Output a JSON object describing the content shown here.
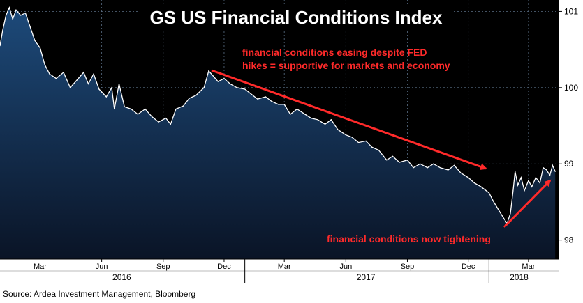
{
  "chart_data": {
    "type": "area",
    "title": "GS US Financial Conditions Index",
    "ylim": [
      97.75,
      101.15
    ],
    "y_ticks": [
      "101",
      "100",
      "99",
      "98"
    ],
    "y_tick_values": [
      101,
      100,
      99,
      98
    ],
    "x_month_labels": [
      {
        "label": "Mar",
        "date": "2016-03-01"
      },
      {
        "label": "Jun",
        "date": "2016-06-01"
      },
      {
        "label": "Sep",
        "date": "2016-09-01"
      },
      {
        "label": "Dec",
        "date": "2016-12-01"
      },
      {
        "label": "Mar",
        "date": "2017-03-01"
      },
      {
        "label": "Jun",
        "date": "2017-06-01"
      },
      {
        "label": "Sep",
        "date": "2017-09-01"
      },
      {
        "label": "Dec",
        "date": "2017-12-01"
      },
      {
        "label": "Mar",
        "date": "2018-03-01"
      }
    ],
    "x_year_labels": [
      {
        "label": "2016",
        "date": "2016-07-01"
      },
      {
        "label": "2017",
        "date": "2017-07-01"
      },
      {
        "label": "2018",
        "date": "2018-02-15"
      }
    ],
    "x_start": "2016-01-01",
    "x_end": "2018-04-15",
    "series": [
      {
        "color": "#ffffff",
        "fill_top": "#1d4a7a",
        "fill_bottom": "#0a1426",
        "points": [
          [
            "2016-01-01",
            100.55
          ],
          [
            "2016-01-05",
            100.75
          ],
          [
            "2016-01-10",
            100.95
          ],
          [
            "2016-01-15",
            101.05
          ],
          [
            "2016-01-20",
            100.9
          ],
          [
            "2016-01-25",
            101.02
          ],
          [
            "2016-02-01",
            100.95
          ],
          [
            "2016-02-08",
            100.98
          ],
          [
            "2016-02-15",
            100.8
          ],
          [
            "2016-02-22",
            100.62
          ],
          [
            "2016-03-01",
            100.52
          ],
          [
            "2016-03-08",
            100.3
          ],
          [
            "2016-03-15",
            100.18
          ],
          [
            "2016-03-25",
            100.12
          ],
          [
            "2016-04-05",
            100.2
          ],
          [
            "2016-04-15",
            100.0
          ],
          [
            "2016-04-25",
            100.1
          ],
          [
            "2016-05-05",
            100.2
          ],
          [
            "2016-05-12",
            100.05
          ],
          [
            "2016-05-20",
            100.18
          ],
          [
            "2016-05-28",
            99.98
          ],
          [
            "2016-06-08",
            99.88
          ],
          [
            "2016-06-16",
            100.0
          ],
          [
            "2016-06-20",
            99.72
          ],
          [
            "2016-06-27",
            100.05
          ],
          [
            "2016-07-05",
            99.75
          ],
          [
            "2016-07-15",
            99.72
          ],
          [
            "2016-07-25",
            99.65
          ],
          [
            "2016-08-05",
            99.72
          ],
          [
            "2016-08-15",
            99.62
          ],
          [
            "2016-08-25",
            99.55
          ],
          [
            "2016-09-05",
            99.6
          ],
          [
            "2016-09-12",
            99.52
          ],
          [
            "2016-09-20",
            99.72
          ],
          [
            "2016-10-01",
            99.76
          ],
          [
            "2016-10-10",
            99.86
          ],
          [
            "2016-10-20",
            99.9
          ],
          [
            "2016-11-01",
            100.0
          ],
          [
            "2016-11-08",
            100.22
          ],
          [
            "2016-11-15",
            100.15
          ],
          [
            "2016-11-22",
            100.08
          ],
          [
            "2016-12-01",
            100.12
          ],
          [
            "2016-12-10",
            100.05
          ],
          [
            "2016-12-20",
            100.0
          ],
          [
            "2017-01-01",
            99.98
          ],
          [
            "2017-01-10",
            99.92
          ],
          [
            "2017-01-20",
            99.85
          ],
          [
            "2017-02-01",
            99.88
          ],
          [
            "2017-02-10",
            99.82
          ],
          [
            "2017-02-20",
            99.78
          ],
          [
            "2017-03-01",
            99.78
          ],
          [
            "2017-03-10",
            99.65
          ],
          [
            "2017-03-20",
            99.72
          ],
          [
            "2017-04-01",
            99.65
          ],
          [
            "2017-04-10",
            99.6
          ],
          [
            "2017-04-20",
            99.58
          ],
          [
            "2017-05-01",
            99.52
          ],
          [
            "2017-05-10",
            99.58
          ],
          [
            "2017-05-20",
            99.45
          ],
          [
            "2017-06-01",
            99.38
          ],
          [
            "2017-06-10",
            99.35
          ],
          [
            "2017-06-20",
            99.28
          ],
          [
            "2017-07-01",
            99.3
          ],
          [
            "2017-07-10",
            99.22
          ],
          [
            "2017-07-20",
            99.18
          ],
          [
            "2017-08-01",
            99.05
          ],
          [
            "2017-08-10",
            99.1
          ],
          [
            "2017-08-20",
            99.02
          ],
          [
            "2017-09-01",
            99.05
          ],
          [
            "2017-09-10",
            98.95
          ],
          [
            "2017-09-20",
            99.0
          ],
          [
            "2017-10-01",
            98.95
          ],
          [
            "2017-10-10",
            99.0
          ],
          [
            "2017-10-20",
            98.95
          ],
          [
            "2017-11-01",
            98.92
          ],
          [
            "2017-11-10",
            98.98
          ],
          [
            "2017-11-20",
            98.88
          ],
          [
            "2017-12-01",
            98.82
          ],
          [
            "2017-12-10",
            98.75
          ],
          [
            "2017-12-20",
            98.7
          ],
          [
            "2018-01-01",
            98.62
          ],
          [
            "2018-01-08",
            98.5
          ],
          [
            "2018-01-15",
            98.4
          ],
          [
            "2018-01-22",
            98.3
          ],
          [
            "2018-01-28",
            98.22
          ],
          [
            "2018-02-02",
            98.35
          ],
          [
            "2018-02-06",
            98.65
          ],
          [
            "2018-02-09",
            98.9
          ],
          [
            "2018-02-13",
            98.72
          ],
          [
            "2018-02-18",
            98.82
          ],
          [
            "2018-02-23",
            98.65
          ],
          [
            "2018-03-01",
            98.78
          ],
          [
            "2018-03-06",
            98.7
          ],
          [
            "2018-03-12",
            98.82
          ],
          [
            "2018-03-18",
            98.75
          ],
          [
            "2018-03-23",
            98.95
          ],
          [
            "2018-03-28",
            98.92
          ],
          [
            "2018-04-02",
            98.85
          ],
          [
            "2018-04-06",
            98.98
          ],
          [
            "2018-04-10",
            98.9
          ]
        ]
      }
    ],
    "annotations": [
      {
        "text_lines": [
          "financial conditions easing despite FED",
          "hikes = supportive for markets and economy"
        ],
        "color": "#ff2a2a"
      },
      {
        "text_lines": [
          "financial conditions now tightening"
        ],
        "color": "#ff2a2a"
      }
    ],
    "grid": true
  },
  "footer": {
    "source": "Source: Ardea Investment Management, Bloomberg"
  }
}
